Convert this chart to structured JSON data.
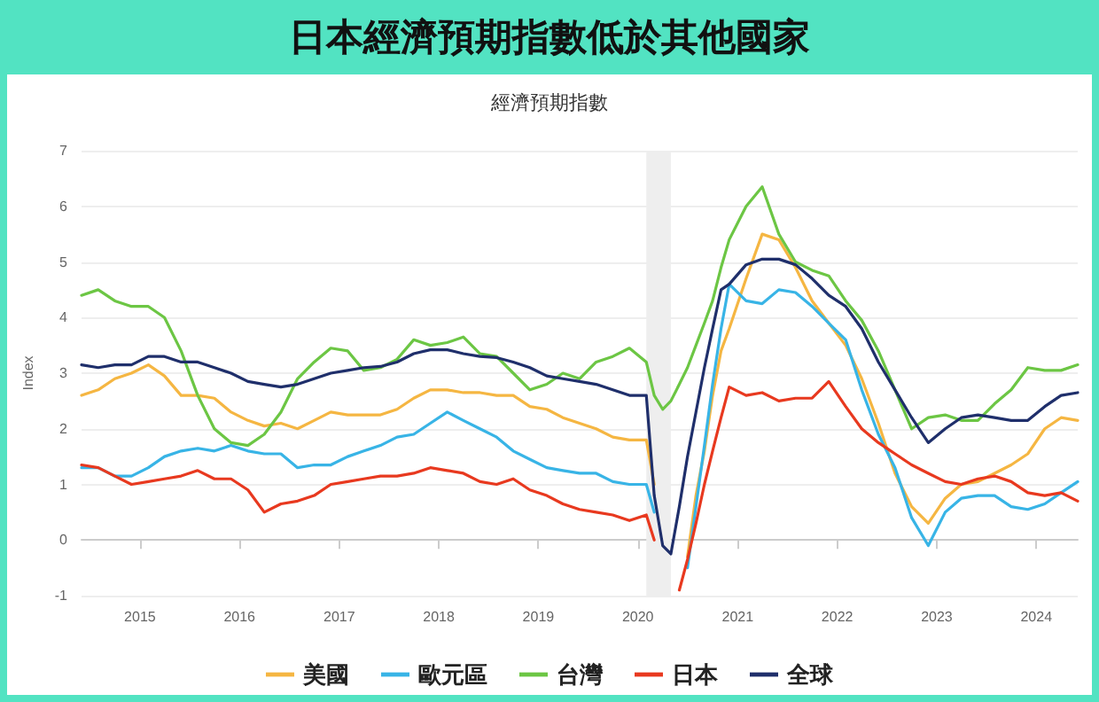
{
  "chart_data": {
    "type": "line",
    "title": "日本經濟預期指數低於其他國家",
    "subtitle": "經濟預期指數",
    "ylabel": "Index",
    "x": [
      "2014-06",
      "2014-08",
      "2014-10",
      "2014-12",
      "2015-02",
      "2015-04",
      "2015-06",
      "2015-08",
      "2015-10",
      "2015-12",
      "2016-02",
      "2016-04",
      "2016-06",
      "2016-08",
      "2016-10",
      "2016-12",
      "2017-02",
      "2017-04",
      "2017-06",
      "2017-08",
      "2017-10",
      "2017-12",
      "2018-02",
      "2018-04",
      "2018-06",
      "2018-08",
      "2018-10",
      "2018-12",
      "2019-02",
      "2019-04",
      "2019-06",
      "2019-08",
      "2019-10",
      "2019-12",
      "2020-02",
      "2020-03",
      "2020-04",
      "2020-05",
      "2020-06",
      "2020-07",
      "2020-08",
      "2020-09",
      "2020-10",
      "2020-11",
      "2020-12",
      "2021-02",
      "2021-04",
      "2021-06",
      "2021-08",
      "2021-10",
      "2021-12",
      "2022-02",
      "2022-04",
      "2022-06",
      "2022-08",
      "2022-10",
      "2022-12",
      "2023-02",
      "2023-04",
      "2023-06",
      "2023-08",
      "2023-10",
      "2023-12",
      "2024-02",
      "2024-04",
      "2024-06"
    ],
    "series": [
      {
        "name": "美國",
        "color": "#f5b642",
        "values": [
          2.6,
          2.7,
          2.9,
          3.0,
          3.15,
          2.95,
          2.6,
          2.6,
          2.55,
          2.3,
          2.15,
          2.05,
          2.1,
          2.0,
          2.15,
          2.3,
          2.25,
          2.25,
          2.25,
          2.35,
          2.55,
          2.7,
          2.7,
          2.65,
          2.65,
          2.6,
          2.6,
          2.4,
          2.35,
          2.2,
          2.1,
          2.0,
          1.85,
          1.8,
          1.8,
          1.0,
          null,
          null,
          null,
          -0.3,
          0.8,
          1.6,
          2.6,
          3.4,
          3.8,
          4.7,
          5.5,
          5.4,
          4.9,
          4.3,
          3.9,
          3.5,
          2.9,
          2.1,
          1.2,
          0.6,
          0.3,
          0.75,
          1.0,
          1.05,
          1.2,
          1.35,
          1.55,
          2.0,
          2.2,
          2.15
        ]
      },
      {
        "name": "歐元區",
        "color": "#38b4e6",
        "values": [
          1.3,
          1.3,
          1.15,
          1.15,
          1.3,
          1.5,
          1.6,
          1.65,
          1.6,
          1.7,
          1.6,
          1.55,
          1.55,
          1.3,
          1.35,
          1.35,
          1.5,
          1.6,
          1.7,
          1.85,
          1.9,
          2.1,
          2.3,
          2.15,
          2.0,
          1.85,
          1.6,
          1.45,
          1.3,
          1.25,
          1.2,
          1.2,
          1.05,
          1.0,
          1.0,
          0.5,
          null,
          null,
          null,
          -0.5,
          0.6,
          1.7,
          2.8,
          3.8,
          4.6,
          4.3,
          4.25,
          4.5,
          4.45,
          4.2,
          3.9,
          3.6,
          2.7,
          1.9,
          1.3,
          0.4,
          -0.1,
          0.5,
          0.75,
          0.8,
          0.8,
          0.6,
          0.55,
          0.65,
          0.85,
          1.05
        ]
      },
      {
        "name": "台灣",
        "color": "#6cc644",
        "values": [
          4.4,
          4.5,
          4.3,
          4.2,
          4.2,
          4.0,
          3.4,
          2.6,
          2.0,
          1.75,
          1.7,
          1.9,
          2.3,
          2.9,
          3.2,
          3.45,
          3.4,
          3.05,
          3.1,
          3.25,
          3.6,
          3.5,
          3.55,
          3.65,
          3.35,
          3.3,
          3.0,
          2.7,
          2.8,
          3.0,
          2.9,
          3.2,
          3.3,
          3.45,
          3.2,
          2.6,
          2.35,
          2.5,
          2.8,
          3.1,
          3.5,
          3.9,
          4.3,
          4.9,
          5.4,
          6.0,
          6.35,
          5.5,
          5.0,
          4.85,
          4.75,
          4.3,
          3.95,
          3.4,
          2.7,
          2.0,
          2.2,
          2.25,
          2.15,
          2.15,
          2.45,
          2.7,
          3.1,
          3.05,
          3.05,
          3.15
        ]
      },
      {
        "name": "日本",
        "color": "#e8391f",
        "values": [
          1.35,
          1.3,
          1.15,
          1.0,
          1.05,
          1.1,
          1.15,
          1.25,
          1.1,
          1.1,
          0.9,
          0.5,
          0.65,
          0.7,
          0.8,
          1.0,
          1.05,
          1.1,
          1.15,
          1.15,
          1.2,
          1.3,
          1.25,
          1.2,
          1.05,
          1.0,
          1.1,
          0.9,
          0.8,
          0.65,
          0.55,
          0.5,
          0.45,
          0.35,
          0.45,
          0.0,
          null,
          null,
          -0.9,
          -0.35,
          0.3,
          1.0,
          1.6,
          2.2,
          2.75,
          2.6,
          2.65,
          2.5,
          2.55,
          2.55,
          2.85,
          2.4,
          2.0,
          1.75,
          1.55,
          1.35,
          1.2,
          1.05,
          1.0,
          1.1,
          1.15,
          1.05,
          0.85,
          0.8,
          0.85,
          0.7
        ]
      },
      {
        "name": "全球",
        "color": "#1f2f6b",
        "values": [
          3.15,
          3.1,
          3.15,
          3.15,
          3.3,
          3.3,
          3.2,
          3.2,
          3.1,
          3.0,
          2.85,
          2.8,
          2.75,
          2.8,
          2.9,
          3.0,
          3.05,
          3.1,
          3.12,
          3.2,
          3.35,
          3.42,
          3.42,
          3.35,
          3.3,
          3.28,
          3.2,
          3.1,
          2.95,
          2.9,
          2.85,
          2.8,
          2.7,
          2.6,
          2.6,
          0.8,
          -0.1,
          -0.25,
          0.6,
          1.5,
          2.3,
          3.1,
          3.8,
          4.5,
          4.6,
          4.95,
          5.05,
          5.05,
          4.95,
          4.7,
          4.4,
          4.2,
          3.8,
          3.2,
          2.7,
          2.2,
          1.75,
          2.0,
          2.2,
          2.25,
          2.2,
          2.15,
          2.15,
          2.4,
          2.6,
          2.65
        ]
      }
    ],
    "bands": [
      {
        "axis": "x",
        "from": "2020-02",
        "to": "2020-05",
        "color": "#eeeeee"
      }
    ],
    "xlim": [
      "2014-06",
      "2024-06"
    ],
    "xticks": [
      "2015",
      "2016",
      "2017",
      "2018",
      "2019",
      "2020",
      "2021",
      "2022",
      "2023",
      "2024"
    ],
    "ylim": [
      -1,
      7
    ],
    "yticks": [
      -1,
      0,
      1,
      2,
      3,
      4,
      5,
      6,
      7
    ],
    "grid": "y",
    "legend": "bottom",
    "marker": "none",
    "line_style": "solid"
  }
}
